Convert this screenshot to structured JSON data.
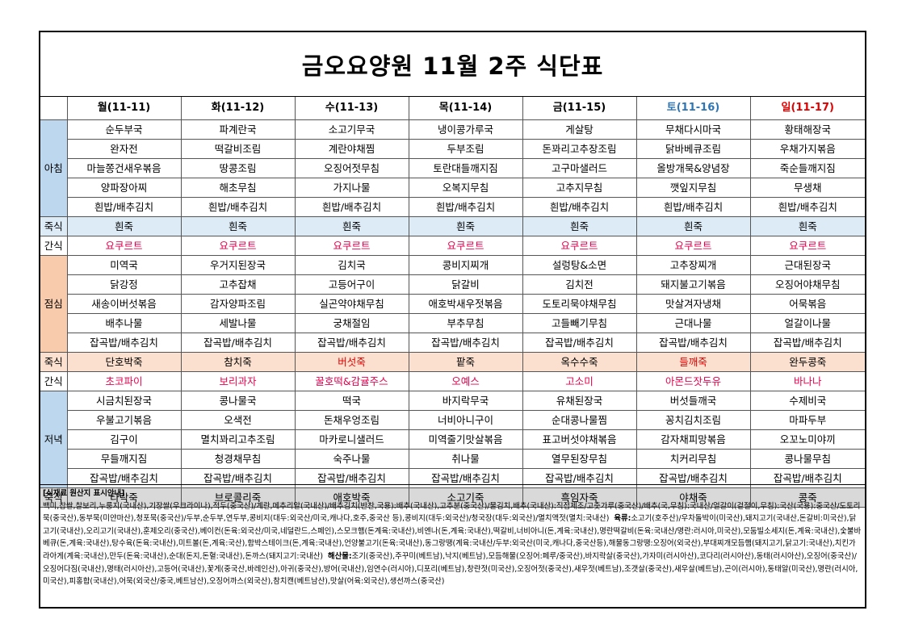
{
  "title": "금오요양원 11월 2주 식단표",
  "days": [
    "월(11-11)",
    "화(11-12)",
    "수(11-13)",
    "목(11-14)",
    "금(11-15)",
    "토(11-16)",
    "일(11-17)"
  ],
  "colors": {
    "breakfast": "#bdd7ee",
    "lunch": "#f8cbad",
    "dinner": "#bdd7ee",
    "snack_text": "#e6004c",
    "saturday": "#2e75b6",
    "sunday": "#e00000"
  },
  "meal_labels": {
    "breakfast": "아침",
    "porridge": "죽식",
    "snack": "간식",
    "lunch": "점심",
    "dinner": "저녁"
  },
  "breakfast": [
    [
      "순두부국",
      "파계란국",
      "소고기무국",
      "냉이콩가루국",
      "게살탕",
      "무채다시마국",
      "황태해장국"
    ],
    [
      "완자전",
      "떡갈비조림",
      "계란야채찜",
      "두부조림",
      "돈꽈리고추장조림",
      "닭바베큐조림",
      "우채가지볶음"
    ],
    [
      "마늘쫑건새우볶음",
      "땅콩조림",
      "오징어젓무침",
      "토란대들깨지짐",
      "고구마샐러드",
      "올방개묵&양념장",
      "죽순들깨지짐"
    ],
    [
      "양파장아찌",
      "해초무침",
      "가지나물",
      "오복지무침",
      "고추지무침",
      "깻잎지무침",
      "무생채"
    ],
    [
      "흰밥/배추김치",
      "흰밥/배추김치",
      "흰밥/배추김치",
      "흰밥/배추김치",
      "흰밥/배추김치",
      "흰밥/배추김치",
      "흰밥/배추김치"
    ]
  ],
  "breakfast_porridge": [
    "흰죽",
    "흰죽",
    "흰죽",
    "흰죽",
    "흰죽",
    "흰죽",
    "흰죽"
  ],
  "morning_snack": [
    "요쿠르트",
    "요쿠르트",
    "요쿠르트",
    "요쿠르트",
    "요쿠르트",
    "요쿠르트",
    "요쿠르트"
  ],
  "lunch": [
    [
      "미역국",
      "우거지된장국",
      "김치국",
      "콩비지찌개",
      "설렁탕&소면",
      "고추장찌개",
      "근대된장국"
    ],
    [
      "닭강정",
      "고추잡채",
      "고등어구이",
      "닭갈비",
      "김치전",
      "돼지불고기볶음",
      "오징어야채무침"
    ],
    [
      "새송이버섯볶음",
      "감자양파조림",
      "실곤약야채무침",
      "애호박새우젓볶음",
      "도토리묵야채무침",
      "맛살겨자냉채",
      "어묵볶음"
    ],
    [
      "배추나물",
      "세발나물",
      "궁채절임",
      "부추무침",
      "고들빼기무침",
      "근대나물",
      "얼갈이나물"
    ],
    [
      "잡곡밥/배추김치",
      "잡곡밥/배추김치",
      "잡곡밥/배추김치",
      "잡곡밥/배추김치",
      "잡곡밥/배추김치",
      "잡곡밥/배추김치",
      "잡곡밥/배추김치"
    ]
  ],
  "lunch_porridge": [
    "단호박죽",
    "참치죽",
    "버섯죽",
    "팥죽",
    "옥수수죽",
    "들깨죽",
    "완두콩죽"
  ],
  "afternoon_snack": [
    "초코파이",
    "보리과자",
    "꿀호떡&감귤주스",
    "오예스",
    "고소미",
    "아몬드잣두유",
    "바나나"
  ],
  "dinner": [
    [
      "시금치된장국",
      "콩나물국",
      "떡국",
      "바지락무국",
      "유채된장국",
      "버섯들깨국",
      "수제비국"
    ],
    [
      "우불고기볶음",
      "오색전",
      "돈채우엉조림",
      "너비아니구이",
      "순대콩나물찜",
      "꽁치김치조림",
      "마파두부"
    ],
    [
      "김구이",
      "멸치꽈리고추조림",
      "마카로니샐러드",
      "미역줄기맛살볶음",
      "표고버섯야채볶음",
      "감자채피망볶음",
      "오꼬노미야끼"
    ],
    [
      "무들깨지짐",
      "청경채무침",
      "숙주나물",
      "취나물",
      "열무된장무침",
      "치커리무침",
      "콩나물무침"
    ],
    [
      "잡곡밥/배추김치",
      "잡곡밥/배추김치",
      "잡곡밥/배추김치",
      "잡곡밥/배추김치",
      "잡곡밥/배추김치",
      "잡곡밥/배추김치",
      "잡곡밥/배추김치"
    ]
  ],
  "dinner_porridge": [
    "타락죽",
    "브로콜리죽",
    "애호박죽",
    "소고기죽",
    "흑임자죽",
    "야채죽",
    "콩죽"
  ],
  "origin_notice": {
    "title": "[식재료 원산지 표시안내]",
    "part1": "백미,찹쌀,찰보리,누룽지(국내산),기장쌀(우크라이나),적두(중국산)/계란,메추리알(국내산)/배추김치(반찬,국용):배추(국내산),고추분(중국산)/물김치,배추(국내산):직접제조/고춧가루(중국산)/배추(국,무침):국내산/얼갈이(겉절이,무침):국산(국용):중국산/도토리묵(중국산),동부묵(미얀마산),청포묵(중국산)/두부,순두부,연두부,콩비지(대두:외국산/미국,캐나다,호주,중국산 등),콩비지(대두:외국산)/청국장(대두:외국산)/멸치액젓(멸치:국내산)",
    "meat_label": "육류:",
    "part2": "소고기(호주산)/우차돌박이(미국산),돼지고기(국내산,돈갈비:미국산),닭고기(국내산),오리고기(국내산),훈제오리(중국산),베이컨(돈육:외국산/미국,네덜란드,스페인),스모크햄(돈계육:국내산),비엔나(돈,계육:국내산),떡갈비,너비아니(돈,계육:국내산),명란떡갈비(돈육:국내산/명란:러시아,미국산),모둠빌소세지(돈,계육:국내산),숯불바베큐(돈,계육:국내산),탕수육(돈육:국내산),미트볼(돈,계육:국산),함박스테이크(돈,계육:국내산),언양불고기(돈육:국내산),동그랑땡(계육:국내산/두부:외국산(미국,캐나다,중국산등),해물동그랑땡:오징어(외국산),부대찌개모듬햄(돼지고기,닭고기:국내산),치킨가라아게(계육:국내산),만두(돈육:국내산),순대(돈지,돈혈:국내산),돈까스(돼지고기:국내산)",
    "seafood_label": "해산물:",
    "part3": "조기(중국산),주꾸미(베트남),낙지(베트남),모듬해물(오징어:페루/중국산),바지락살(중국산),가자미(러시아산),코다리(러시아산),동태(러시아산),오징어(중국산)/오징어다짐(국내산),명태(러시아산),고등어(국내산),꽃게(중국산,바레인산),아귀(중국산),방어(국내산),임연수(러시아),디포리(베트남),창란젓(미국산),오징어젓(중국산),새우젓(베트남),조갯살(중국산),새우살(베트남),곤이(러시아),동태알(미국산),명란(러시아,미국산),피홍합(국내산),어묵(외국산/중국,베트남산),오징어까스(외국산),참치캔(베트남산),맛살(어육:외국산),생선까스(중국산)"
  }
}
